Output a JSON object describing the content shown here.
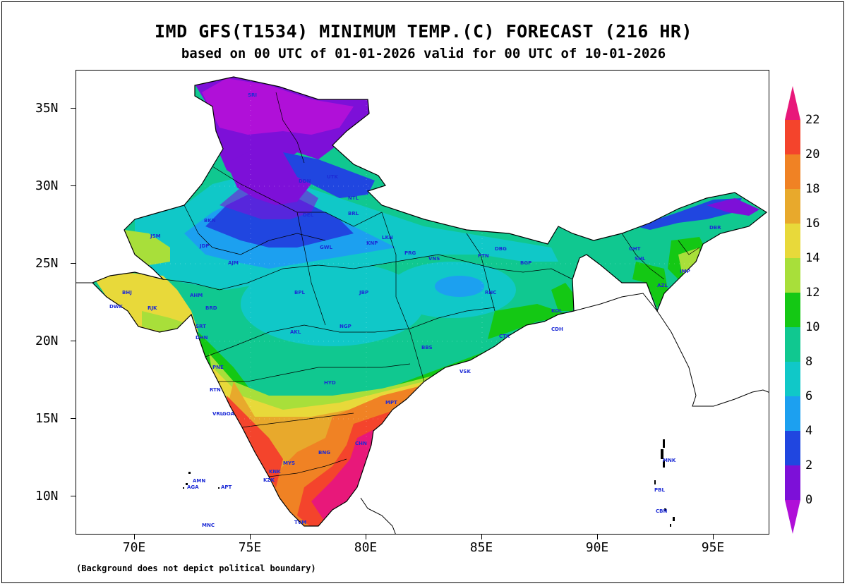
{
  "title": "IMD GFS(T1534) MINIMUM TEMP.(C) FORECAST (216 HR)",
  "subtitle": "based on 00 UTC of 01-01-2026 valid for 00 UTC of 10-01-2026",
  "footer": "(Background does not depict political boundary)",
  "lat_labels": [
    "35N",
    "30N",
    "25N",
    "20N",
    "15N",
    "10N"
  ],
  "lon_labels": [
    "70E",
    "75E",
    "80E",
    "85E",
    "90E",
    "95E"
  ],
  "colorbar": {
    "labels": [
      "22",
      "20",
      "18",
      "16",
      "14",
      "12",
      "10",
      "8",
      "6",
      "4",
      "2",
      "0"
    ],
    "colors": [
      "#e8187a",
      "#f4442c",
      "#f08224",
      "#e8a92c",
      "#e8d93a",
      "#a8df3a",
      "#14c814",
      "#10c890",
      "#10c8c8",
      "#1ca0f0",
      "#2046e0",
      "#7d10d8",
      "#b010d8"
    ]
  },
  "stations": [
    {
      "t": "SRI"
    },
    {
      "t": "UTK"
    },
    {
      "t": "DDN"
    },
    {
      "t": "NTL"
    },
    {
      "t": "BRL"
    },
    {
      "t": "DEL"
    },
    {
      "t": "BKN"
    },
    {
      "t": "JSM"
    },
    {
      "t": "JDP"
    },
    {
      "t": "AJM"
    },
    {
      "t": "GWL"
    },
    {
      "t": "LKN"
    },
    {
      "t": "KNP"
    },
    {
      "t": "PRG"
    },
    {
      "t": "VNS"
    },
    {
      "t": "PTN"
    },
    {
      "t": "DBG"
    },
    {
      "t": "BGP"
    },
    {
      "t": "RNC"
    },
    {
      "t": "BPL"
    },
    {
      "t": "JBP"
    },
    {
      "t": "NGP"
    },
    {
      "t": "AKL"
    },
    {
      "t": "PNE"
    },
    {
      "t": "HYD"
    },
    {
      "t": "BBS"
    },
    {
      "t": "CTK"
    },
    {
      "t": "VSK"
    },
    {
      "t": "MPT"
    },
    {
      "t": "CHN"
    },
    {
      "t": "BNG"
    },
    {
      "t": "MYS"
    },
    {
      "t": "KZK"
    },
    {
      "t": "TVM"
    },
    {
      "t": "KNK"
    },
    {
      "t": "GHT"
    },
    {
      "t": "SHL"
    },
    {
      "t": "IMP"
    },
    {
      "t": "AZL"
    },
    {
      "t": "DBR"
    },
    {
      "t": "AGA"
    },
    {
      "t": "AMN"
    },
    {
      "t": "APT"
    },
    {
      "t": "MNC"
    },
    {
      "t": "PBL"
    },
    {
      "t": "CBN"
    },
    {
      "t": "KDL"
    },
    {
      "t": "MNK"
    },
    {
      "t": "GOA"
    },
    {
      "t": "RTN"
    },
    {
      "t": "VRL"
    },
    {
      "t": "BHJ"
    },
    {
      "t": "DWK"
    },
    {
      "t": "RJK"
    },
    {
      "t": "AHM"
    },
    {
      "t": "BRD"
    },
    {
      "t": "SRT"
    },
    {
      "t": "DHN"
    },
    {
      "t": "CDH"
    },
    {
      "t": "KOL"
    }
  ]
}
